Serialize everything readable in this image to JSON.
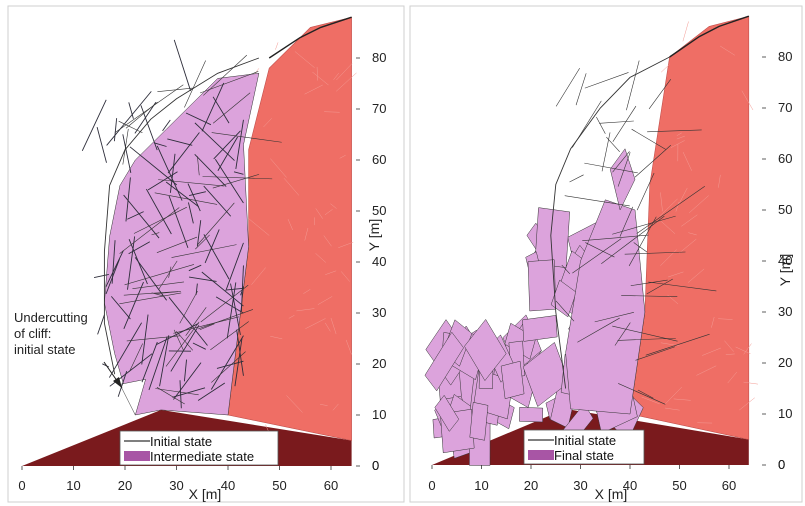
{
  "chart_data": [
    {
      "type": "diagram",
      "xlabel": "X [m]",
      "ylabel": "Y [m]",
      "xlim": [
        0,
        65
      ],
      "ylim": [
        0,
        88
      ],
      "xticks": [
        0,
        10,
        20,
        30,
        40,
        50,
        60
      ],
      "yticks": [
        0,
        10,
        20,
        30,
        40,
        50,
        60,
        70,
        80
      ],
      "legend": {
        "placement": "bottom-center",
        "entries": [
          {
            "label": "Initial state",
            "style": "line",
            "color": "#333333"
          },
          {
            "label": "Intermediate state",
            "style": "fill",
            "color": "#a855a5"
          }
        ]
      },
      "annotation": {
        "lines": [
          "Undercutting",
          "of cliff:",
          "initial state"
        ],
        "arrow_to": [
          20.5,
          16
        ]
      },
      "colors": {
        "ground": "#7a1a1d",
        "stable_rock": "#ef6e65",
        "blocks": "#dca3dc",
        "lines": "#333333"
      }
    },
    {
      "type": "diagram",
      "xlabel": "X [m]",
      "ylabel": "Y [m]",
      "xlim": [
        0,
        65
      ],
      "ylim": [
        0,
        88
      ],
      "xticks": [
        0,
        10,
        20,
        30,
        40,
        50,
        60
      ],
      "yticks": [
        0,
        10,
        20,
        30,
        40,
        50,
        60,
        70,
        80
      ],
      "legend": {
        "placement": "bottom-center",
        "entries": [
          {
            "label": "Initial state",
            "style": "line",
            "color": "#333333"
          },
          {
            "label": "Final state",
            "style": "fill",
            "color": "#a855a5"
          }
        ]
      },
      "colors": {
        "ground": "#7a1a1d",
        "stable_rock": "#ef6e65",
        "blocks": "#dca3dc",
        "lines": "#333333"
      }
    }
  ]
}
